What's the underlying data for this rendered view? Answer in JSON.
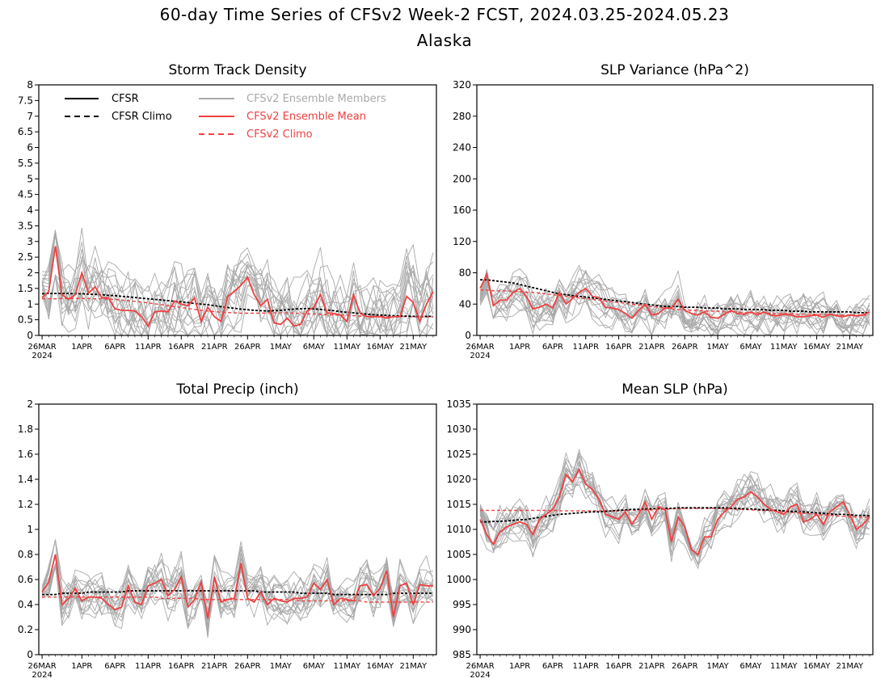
{
  "figure": {
    "title_line1": "60-day Time Series of CFSv2 Week-2 FCST, 2024.03.25-2024.05.23",
    "title_line2": "Alaska"
  },
  "colors": {
    "cfsr": "#000000",
    "cfsr_climo": "#000000",
    "ensemble_members": "#a9a9a9",
    "ensemble_mean": "#f04040",
    "cfsv2_climo": "#f04040"
  },
  "legend": {
    "placement": "top-left of first panel",
    "items": [
      {
        "label": "CFSR",
        "style": "solid",
        "color": "#000000"
      },
      {
        "label": "CFSR Climo",
        "style": "dashed",
        "color": "#000000"
      },
      {
        "label": "CFSv2 Ensemble Members",
        "style": "solid",
        "color": "#a9a9a9"
      },
      {
        "label": "CFSv2 Ensemble Mean",
        "style": "solid",
        "color": "#f04040"
      },
      {
        "label": "CFSv2 Climo",
        "style": "dashed",
        "color": "#f04040"
      }
    ]
  },
  "x_axis": {
    "ticks": [
      "26MAR",
      "1APR",
      "6APR",
      "11APR",
      "16APR",
      "21APR",
      "26APR",
      "1MAY",
      "6MAY",
      "11MAY",
      "16MAY",
      "21MAY"
    ],
    "tick_day_index": [
      1,
      7,
      12,
      17,
      22,
      27,
      32,
      37,
      42,
      47,
      52,
      57
    ],
    "year_label": "2024",
    "days": 60
  },
  "chart_data": [
    {
      "type": "line",
      "title": "Storm Track Density",
      "ylim": [
        0,
        8
      ],
      "yticks": [
        "0",
        "0.5",
        "1",
        "1.5",
        "2",
        "2.5",
        "3",
        "3.5",
        "4",
        "4.5",
        "5",
        "5.5",
        "6",
        "6.5",
        "7",
        "7.5",
        "8"
      ],
      "ytick_values": [
        0,
        0.5,
        1,
        1.5,
        2,
        2.5,
        3,
        3.5,
        4,
        4.5,
        5,
        5.5,
        6,
        6.5,
        7,
        7.5,
        8
      ],
      "members": {
        "count": 16,
        "center": "ensemble_mean",
        "spread": 0.9,
        "floor": 0
      },
      "series": [
        {
          "name": "CFSR Climo",
          "style": "dashed",
          "values": [
            1.33,
            1.34,
            1.34,
            1.34,
            1.34,
            1.33,
            1.33,
            1.32,
            1.31,
            1.3,
            1.28,
            1.27,
            1.25,
            1.23,
            1.21,
            1.19,
            1.17,
            1.15,
            1.13,
            1.11,
            1.09,
            1.07,
            1.05,
            1.02,
            1.0,
            0.98,
            0.95,
            0.92,
            0.89,
            0.87,
            0.84,
            0.82,
            0.8,
            0.79,
            0.78,
            0.79,
            0.8,
            0.82,
            0.84,
            0.85,
            0.86,
            0.85,
            0.83,
            0.81,
            0.79,
            0.76,
            0.74,
            0.72,
            0.7,
            0.68,
            0.66,
            0.65,
            0.64,
            0.63,
            0.62,
            0.62,
            0.61,
            0.61,
            0.61,
            0.61
          ]
        },
        {
          "name": "CFSv2 Climo",
          "style": "dashed",
          "values": [
            1.17,
            1.17,
            1.17,
            1.18,
            1.18,
            1.18,
            1.18,
            1.18,
            1.17,
            1.17,
            1.16,
            1.15,
            1.13,
            1.11,
            1.09,
            1.06,
            1.04,
            1.01,
            0.98,
            0.95,
            0.92,
            0.89,
            0.86,
            0.83,
            0.8,
            0.78,
            0.76,
            0.74,
            0.73,
            0.72,
            0.71,
            0.71,
            0.71,
            0.71,
            0.72,
            0.72,
            0.72,
            0.72,
            0.71,
            0.7,
            0.69,
            0.68,
            0.67,
            0.66,
            0.65,
            0.65,
            0.64,
            0.63,
            0.62,
            0.62,
            0.61,
            0.61,
            0.6,
            0.6,
            0.6,
            0.6,
            0.59,
            0.59,
            0.59,
            0.59
          ]
        },
        {
          "name": "CFSv2 Ensemble Mean",
          "style": "solid",
          "values": [
            1.2,
            1.4,
            2.85,
            1.3,
            1.15,
            1.3,
            2.0,
            1.35,
            1.55,
            1.2,
            1.2,
            0.85,
            0.8,
            0.8,
            0.78,
            0.6,
            0.3,
            0.75,
            0.78,
            0.75,
            1.1,
            1.0,
            0.95,
            1.2,
            0.45,
            0.9,
            0.6,
            0.45,
            1.25,
            1.4,
            1.6,
            1.85,
            1.3,
            0.95,
            1.15,
            0.4,
            0.35,
            0.55,
            0.3,
            0.35,
            0.78,
            0.9,
            1.3,
            0.72,
            0.7,
            0.65,
            0.45,
            1.3,
            0.7,
            0.6,
            0.6,
            0.6,
            0.55,
            0.6,
            0.6,
            1.25,
            1.05,
            0.45,
            1.0,
            1.4
          ]
        }
      ]
    },
    {
      "type": "line",
      "title": "SLP Variance (hPa^2)",
      "ylim": [
        0,
        320
      ],
      "yticks": [
        "0",
        "40",
        "80",
        "120",
        "160",
        "200",
        "240",
        "280",
        "320"
      ],
      "ytick_values": [
        0,
        40,
        80,
        120,
        160,
        200,
        240,
        280,
        320
      ],
      "members": {
        "count": 16,
        "center": "ensemble_mean",
        "spread": 18,
        "floor": 0
      },
      "series": [
        {
          "name": "CFSR Climo",
          "style": "dashed",
          "values": [
            71,
            71,
            70,
            69,
            68,
            67,
            65,
            63,
            61,
            59,
            57,
            55,
            53,
            52,
            51,
            50,
            49,
            48,
            47,
            46,
            45,
            44,
            43,
            42,
            41,
            40,
            39,
            38,
            37,
            37,
            37,
            36,
            36,
            36,
            35,
            35,
            35,
            34,
            34,
            34,
            33,
            33,
            33,
            33,
            32,
            32,
            32,
            31,
            31,
            31,
            30,
            30,
            30,
            30,
            30,
            30,
            30,
            29,
            29,
            29
          ]
        },
        {
          "name": "CFSv2 Climo",
          "style": "dashed",
          "values": [
            58,
            58,
            57,
            57,
            57,
            56,
            56,
            55,
            55,
            54,
            53,
            52,
            51,
            50,
            49,
            48,
            47,
            46,
            45,
            44,
            43,
            42,
            41,
            40,
            39,
            38,
            37,
            36,
            35,
            34,
            33,
            33,
            32,
            32,
            31,
            31,
            31,
            30,
            30,
            30,
            29,
            29,
            29,
            29,
            28,
            28,
            28,
            28,
            27,
            27,
            27,
            27,
            27,
            27,
            26,
            26,
            26,
            26,
            26,
            26
          ]
        },
        {
          "name": "CFSv2 Ensemble Mean",
          "style": "solid",
          "values": [
            60,
            78,
            38,
            45,
            45,
            55,
            60,
            50,
            34,
            36,
            40,
            35,
            55,
            40,
            47,
            55,
            60,
            50,
            48,
            36,
            35,
            33,
            28,
            22,
            32,
            40,
            26,
            28,
            35,
            35,
            46,
            32,
            28,
            26,
            30,
            23,
            22,
            27,
            32,
            28,
            27,
            30,
            26,
            30,
            26,
            25,
            27,
            26,
            24,
            24,
            25,
            26,
            23,
            27,
            25,
            24,
            26,
            25,
            26,
            30
          ]
        }
      ]
    },
    {
      "type": "line",
      "title": "Total Precip (inch)",
      "ylim": [
        0,
        2
      ],
      "yticks": [
        "0",
        "0.2",
        "0.4",
        "0.6",
        "0.8",
        "1",
        "1.2",
        "1.4",
        "1.6",
        "1.8",
        "2"
      ],
      "ytick_values": [
        0,
        0.2,
        0.4,
        0.6,
        0.8,
        1,
        1.2,
        1.4,
        1.6,
        1.8,
        2
      ],
      "members": {
        "count": 16,
        "center": "ensemble_mean",
        "spread": 0.13,
        "floor": 0
      },
      "series": [
        {
          "name": "CFSR Climo",
          "style": "dashed",
          "values": [
            0.48,
            0.48,
            0.48,
            0.49,
            0.49,
            0.49,
            0.49,
            0.5,
            0.5,
            0.5,
            0.5,
            0.5,
            0.5,
            0.51,
            0.51,
            0.51,
            0.51,
            0.51,
            0.51,
            0.51,
            0.51,
            0.51,
            0.51,
            0.51,
            0.51,
            0.51,
            0.51,
            0.51,
            0.51,
            0.51,
            0.51,
            0.51,
            0.51,
            0.5,
            0.5,
            0.5,
            0.5,
            0.5,
            0.5,
            0.49,
            0.49,
            0.49,
            0.49,
            0.49,
            0.48,
            0.48,
            0.48,
            0.48,
            0.48,
            0.48,
            0.48,
            0.48,
            0.48,
            0.49,
            0.49,
            0.49,
            0.49,
            0.49,
            0.49,
            0.49
          ]
        },
        {
          "name": "CFSv2 Climo",
          "style": "dashed",
          "values": [
            0.46,
            0.46,
            0.46,
            0.46,
            0.46,
            0.46,
            0.46,
            0.46,
            0.46,
            0.46,
            0.46,
            0.46,
            0.46,
            0.46,
            0.46,
            0.46,
            0.46,
            0.46,
            0.45,
            0.45,
            0.45,
            0.45,
            0.45,
            0.45,
            0.44,
            0.44,
            0.44,
            0.44,
            0.44,
            0.44,
            0.44,
            0.44,
            0.44,
            0.44,
            0.44,
            0.44,
            0.44,
            0.44,
            0.44,
            0.43,
            0.43,
            0.43,
            0.43,
            0.43,
            0.43,
            0.43,
            0.43,
            0.43,
            0.43,
            0.42,
            0.42,
            0.42,
            0.42,
            0.42,
            0.42,
            0.42,
            0.42,
            0.42,
            0.42,
            0.42
          ]
        },
        {
          "name": "CFSv2 Ensemble Mean",
          "style": "solid",
          "values": [
            0.5,
            0.58,
            0.8,
            0.4,
            0.45,
            0.53,
            0.43,
            0.46,
            0.46,
            0.45,
            0.4,
            0.36,
            0.38,
            0.55,
            0.42,
            0.4,
            0.55,
            0.57,
            0.6,
            0.47,
            0.52,
            0.62,
            0.38,
            0.44,
            0.58,
            0.29,
            0.62,
            0.42,
            0.44,
            0.45,
            0.73,
            0.45,
            0.42,
            0.5,
            0.4,
            0.45,
            0.43,
            0.42,
            0.45,
            0.45,
            0.46,
            0.57,
            0.52,
            0.6,
            0.4,
            0.45,
            0.44,
            0.43,
            0.55,
            0.56,
            0.47,
            0.53,
            0.67,
            0.3,
            0.55,
            0.57,
            0.4,
            0.56,
            0.55,
            0.55
          ]
        }
      ]
    },
    {
      "type": "line",
      "title": "Mean SLP (hPa)",
      "ylim": [
        985,
        1035
      ],
      "yticks": [
        "985",
        "990",
        "995",
        "1000",
        "1005",
        "1010",
        "1015",
        "1020",
        "1025",
        "1030",
        "1035"
      ],
      "ytick_values": [
        985,
        990,
        995,
        1000,
        1005,
        1010,
        1015,
        1020,
        1025,
        1030,
        1035
      ],
      "members": {
        "count": 16,
        "center": "ensemble_mean",
        "spread": 2.8,
        "floor": 985
      },
      "series": [
        {
          "name": "CFSR Climo",
          "style": "dashed",
          "values": [
            1011.5,
            1011.5,
            1011.6,
            1011.6,
            1011.7,
            1011.8,
            1011.9,
            1012.0,
            1012.2,
            1012.4,
            1012.6,
            1012.8,
            1013.0,
            1013.1,
            1013.2,
            1013.3,
            1013.4,
            1013.5,
            1013.5,
            1013.6,
            1013.7,
            1013.8,
            1013.9,
            1014.0,
            1014.0,
            1014.1,
            1014.1,
            1014.2,
            1014.2,
            1014.2,
            1014.3,
            1014.3,
            1014.3,
            1014.3,
            1014.3,
            1014.3,
            1014.3,
            1014.3,
            1014.2,
            1014.2,
            1014.1,
            1014.1,
            1014.0,
            1013.9,
            1013.9,
            1013.8,
            1013.7,
            1013.6,
            1013.6,
            1013.5,
            1013.4,
            1013.3,
            1013.2,
            1013.1,
            1013.0,
            1013.0,
            1012.9,
            1012.8,
            1012.8,
            1012.7
          ]
        },
        {
          "name": "CFSv2 Climo",
          "style": "dashed",
          "values": [
            1013.8,
            1013.8,
            1013.8,
            1013.8,
            1013.8,
            1013.8,
            1013.8,
            1013.8,
            1013.8,
            1013.8,
            1013.8,
            1013.8,
            1013.7,
            1013.7,
            1013.7,
            1013.7,
            1013.7,
            1013.7,
            1013.7,
            1013.7,
            1013.7,
            1013.7,
            1013.8,
            1013.8,
            1013.8,
            1013.9,
            1013.9,
            1014.0,
            1014.0,
            1014.1,
            1014.1,
            1014.2,
            1014.2,
            1014.2,
            1014.2,
            1014.2,
            1014.2,
            1014.1,
            1014.1,
            1014.0,
            1014.0,
            1013.9,
            1013.8,
            1013.8,
            1013.7,
            1013.6,
            1013.5,
            1013.4,
            1013.3,
            1013.2,
            1013.1,
            1013.0,
            1012.9,
            1012.8,
            1012.7,
            1012.6,
            1012.5,
            1012.5,
            1012.4,
            1012.4
          ]
        },
        {
          "name": "CFSv2 Ensemble Mean",
          "style": "solid",
          "values": [
            1012.0,
            1009.0,
            1007.0,
            1009.5,
            1010.5,
            1011.0,
            1011.5,
            1011.0,
            1009.0,
            1012.0,
            1013.0,
            1014.0,
            1016.5,
            1021.0,
            1019.5,
            1022.0,
            1019.0,
            1018.0,
            1016.0,
            1013.0,
            1012.5,
            1012.0,
            1013.5,
            1011.0,
            1013.0,
            1015.5,
            1012.0,
            1014.5,
            1014.0,
            1007.5,
            1012.5,
            1010.5,
            1006.0,
            1005.0,
            1008.5,
            1008.5,
            1012.0,
            1013.5,
            1014.5,
            1016.0,
            1016.5,
            1017.5,
            1016.5,
            1015.0,
            1014.0,
            1013.5,
            1013.0,
            1014.5,
            1015.0,
            1011.5,
            1012.0,
            1013.0,
            1011.0,
            1013.5,
            1014.5,
            1015.5,
            1013.0,
            1010.0,
            1011.0,
            1012.5
          ]
        }
      ]
    }
  ]
}
